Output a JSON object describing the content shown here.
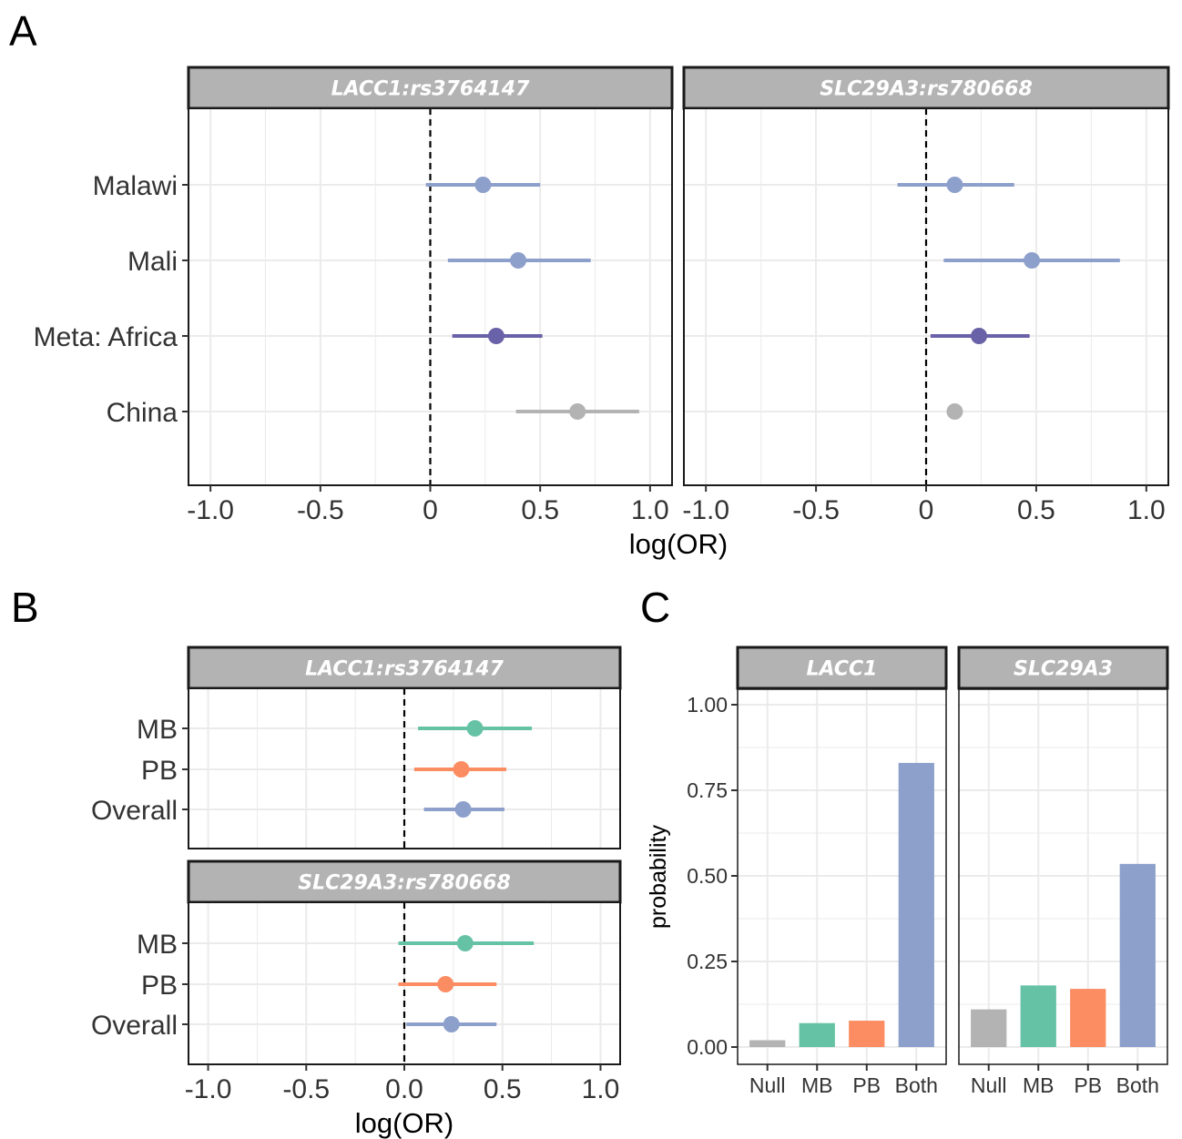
{
  "colors": {
    "blue": "#8DA0CB",
    "purple": "#6A62A8",
    "grey": "#B3B3B3",
    "green": "#66C2A5",
    "orange": "#FC8D62",
    "strip_fill": "#B3B3B3",
    "grid": "#EBEBEB"
  },
  "panel_letters": {
    "a": "A",
    "b": "B",
    "c": "C"
  },
  "chart_data": [
    {
      "id": "A",
      "type": "forest",
      "xlabel": "log(OR)",
      "xlim": [
        -1.1,
        1.1
      ],
      "xticks": [
        -1.0,
        -0.5,
        0,
        0.5,
        1.0
      ],
      "xtick_labels": [
        "-1.0",
        "-0.5",
        "0",
        "0.5",
        "1.0"
      ],
      "reference_line": 0,
      "categories": [
        "Malawi",
        "Mali",
        "Meta: Africa",
        "China"
      ],
      "facets": [
        {
          "title": "LACC1:rs3764147",
          "points": [
            {
              "label": "Malawi",
              "est": 0.24,
              "lo": -0.02,
              "hi": 0.5,
              "color": "blue"
            },
            {
              "label": "Mali",
              "est": 0.4,
              "lo": 0.08,
              "hi": 0.73,
              "color": "blue"
            },
            {
              "label": "Meta: Africa",
              "est": 0.3,
              "lo": 0.1,
              "hi": 0.51,
              "color": "purple"
            },
            {
              "label": "China",
              "est": 0.67,
              "lo": 0.39,
              "hi": 0.95,
              "color": "grey"
            }
          ]
        },
        {
          "title": "SLC29A3:rs780668",
          "points": [
            {
              "label": "Malawi",
              "est": 0.13,
              "lo": -0.13,
              "hi": 0.4,
              "color": "blue"
            },
            {
              "label": "Mali",
              "est": 0.48,
              "lo": 0.08,
              "hi": 0.88,
              "color": "blue"
            },
            {
              "label": "Meta: Africa",
              "est": 0.24,
              "lo": 0.02,
              "hi": 0.47,
              "color": "purple"
            },
            {
              "label": "China",
              "est": 0.13,
              "lo": 0.11,
              "hi": 0.15,
              "color": "grey"
            }
          ]
        }
      ]
    },
    {
      "id": "B",
      "type": "forest",
      "xlabel": "log(OR)",
      "xlim": [
        -1.1,
        1.1
      ],
      "xticks": [
        -1.0,
        -0.5,
        0,
        0.5,
        1.0
      ],
      "xtick_labels": [
        "-1.0",
        "-0.5",
        "0.0",
        "0.5",
        "1.0"
      ],
      "reference_line": 0,
      "categories": [
        "MB",
        "PB",
        "Overall"
      ],
      "facets": [
        {
          "title": "LACC1:rs3764147",
          "points": [
            {
              "label": "MB",
              "est": 0.36,
              "lo": 0.07,
              "hi": 0.65,
              "color": "green"
            },
            {
              "label": "PB",
              "est": 0.29,
              "lo": 0.05,
              "hi": 0.52,
              "color": "orange"
            },
            {
              "label": "Overall",
              "est": 0.3,
              "lo": 0.1,
              "hi": 0.51,
              "color": "blue"
            }
          ]
        },
        {
          "title": "SLC29A3:rs780668",
          "points": [
            {
              "label": "MB",
              "est": 0.31,
              "lo": -0.03,
              "hi": 0.66,
              "color": "green"
            },
            {
              "label": "PB",
              "est": 0.21,
              "lo": -0.03,
              "hi": 0.47,
              "color": "orange"
            },
            {
              "label": "Overall",
              "est": 0.24,
              "lo": 0.01,
              "hi": 0.47,
              "color": "blue"
            }
          ]
        }
      ]
    },
    {
      "id": "C",
      "type": "bar",
      "ylabel": "probability",
      "ylim": [
        -0.05,
        1.05
      ],
      "yticks": [
        0,
        0.25,
        0.5,
        0.75,
        1.0
      ],
      "ytick_labels": [
        "0.00",
        "0.25",
        "0.50",
        "0.75",
        "1.00"
      ],
      "categories": [
        "Null",
        "MB",
        "PB",
        "Both"
      ],
      "bar_colors": [
        "grey",
        "green",
        "orange",
        "blue"
      ],
      "facets": [
        {
          "title": "LACC1",
          "values": [
            0.02,
            0.07,
            0.077,
            0.83
          ]
        },
        {
          "title": "SLC29A3",
          "values": [
            0.11,
            0.18,
            0.17,
            0.535
          ]
        }
      ]
    }
  ]
}
